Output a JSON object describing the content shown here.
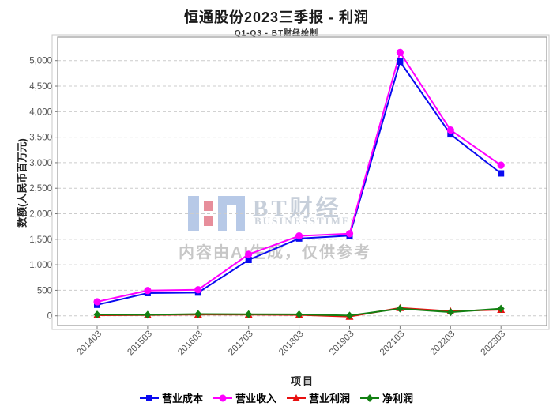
{
  "title": "恒通股份2023三季报 - 利润",
  "subtitle": "Q1-Q3 - BT财经绘制",
  "axes": {
    "x_title": "项目",
    "y_title": "数额(人民币百万元)"
  },
  "watermark": {
    "logo_icon": "bt-logo",
    "name": "BT财经",
    "subname": "BUSINESSTIMES",
    "disclaimer": "内容由AI生成，仅供参考"
  },
  "chart_data": {
    "type": "line",
    "title": "恒通股份2023三季报 - 利润",
    "subtitle": "Q1-Q3 - BT财经绘制",
    "xlabel": "项目",
    "ylabel": "数额(人民币百万元)",
    "categories": [
      "201403",
      "201503",
      "201603",
      "201703",
      "201803",
      "201903",
      "202103",
      "202203",
      "202303"
    ],
    "series": [
      {
        "name": "营业成本",
        "marker": "square",
        "color": "#0a0af0",
        "values": [
          215,
          445,
          455,
          1095,
          1515,
          1570,
          4980,
          3555,
          2790
        ]
      },
      {
        "name": "营业收入",
        "marker": "circle",
        "color": "#ff00ff",
        "values": [
          275,
          495,
          510,
          1205,
          1565,
          1610,
          5160,
          3640,
          2950
        ]
      },
      {
        "name": "营业利润",
        "marker": "triangle",
        "color": "#e81010",
        "values": [
          12,
          15,
          25,
          22,
          18,
          -15,
          155,
          90,
          120
        ]
      },
      {
        "name": "净利润",
        "marker": "diamond",
        "color": "#128012",
        "values": [
          25,
          20,
          35,
          30,
          28,
          5,
          140,
          72,
          140
        ]
      }
    ],
    "yticks": [
      0,
      500,
      1000,
      1500,
      2000,
      2500,
      3000,
      3500,
      4000,
      4500,
      5000
    ],
    "ylim": [
      -190,
      5460
    ],
    "grid": "horizontal-dashed",
    "legend_position": "bottom",
    "colors": {
      "gridline": "#cccccc",
      "frame": "#999999",
      "outer_frame": "#c8c8c8",
      "tick_label": "#555555"
    }
  }
}
